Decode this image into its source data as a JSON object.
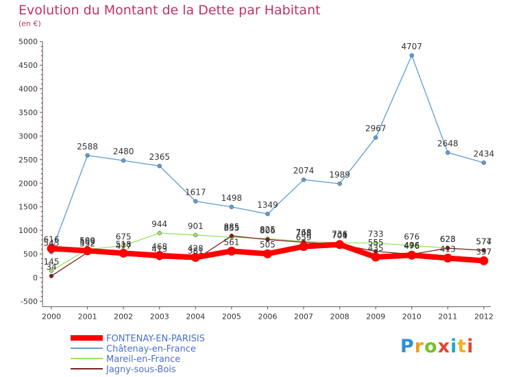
{
  "chart_data": {
    "type": "line",
    "title": "Evolution du Montant de la Dette par Habitant",
    "subtitle": "(en €)",
    "x": [
      "2000",
      "2001",
      "2002",
      "2003",
      "2004",
      "2005",
      "2006",
      "2007",
      "2008",
      "2009",
      "2010",
      "2011",
      "2012"
    ],
    "ylim": [
      -500,
      5000
    ],
    "yticks": [
      -500,
      0,
      500,
      1000,
      1500,
      2000,
      2500,
      3000,
      3500,
      4000,
      4500,
      5000
    ],
    "grid": false,
    "legend_position": "bottom-left",
    "series": [
      {
        "name": "FONTENAY-EN-PARISIS",
        "color": "#ff0000",
        "values": [
          616,
          569,
          518,
          468,
          428,
          561,
          505,
          659,
          701,
          435,
          476,
          413,
          357
        ]
      },
      {
        "name": "Châtenay-en-France",
        "color": "#5b9bd5",
        "values": [
          543,
          2588,
          2480,
          2365,
          1617,
          1498,
          1349,
          2074,
          1989,
          2967,
          4707,
          2648,
          2434
        ]
      },
      {
        "name": "Mareil-en-France",
        "color": "#99e266",
        "values": [
          145,
          599,
          675,
          944,
          901,
          855,
          825,
          768,
          736,
          733,
          676,
          628,
          574
        ]
      },
      {
        "name": "Jagny-sous-Bois",
        "color": "#7b1f1f",
        "values": [
          34,
          532,
          477,
          413,
          381,
          885,
          806,
          748,
          704,
          555,
          496,
          623,
          577
        ]
      }
    ]
  },
  "logo_text": "Proxiti"
}
